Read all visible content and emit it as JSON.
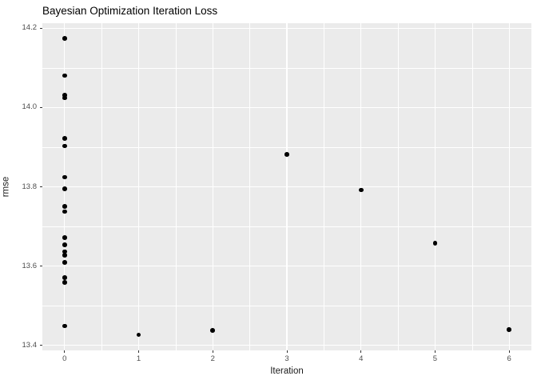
{
  "chart_data": {
    "type": "scatter",
    "title": "Bayesian Optimization Iteration Loss",
    "xlabel": "Iteration",
    "ylabel": "rmse",
    "x_tick_labels": [
      "0",
      "1",
      "2",
      "3",
      "4",
      "5",
      "6"
    ],
    "x_tick_values": [
      0,
      1,
      2,
      3,
      4,
      5,
      6
    ],
    "y_tick_labels": [
      "13.4",
      "13.6",
      "13.8",
      "14.0",
      "14.2"
    ],
    "y_tick_values": [
      13.4,
      13.6,
      13.8,
      14.0,
      14.2
    ],
    "x_minor_values": [
      0.5,
      1.5,
      2.5,
      3.5,
      4.5,
      5.5
    ],
    "y_minor_values": [
      13.5,
      13.7,
      13.9,
      14.1
    ],
    "xlim": [
      -0.3,
      6.3
    ],
    "ylim": [
      13.387,
      14.213
    ],
    "grid": "major and minor white gridlines on gray panel",
    "legend_position": "none",
    "points": [
      {
        "x": 0,
        "y": 14.175
      },
      {
        "x": 0,
        "y": 14.081
      },
      {
        "x": 0,
        "y": 14.031
      },
      {
        "x": 0,
        "y": 14.024
      },
      {
        "x": 0,
        "y": 13.922
      },
      {
        "x": 0,
        "y": 13.903
      },
      {
        "x": 0,
        "y": 13.824
      },
      {
        "x": 0,
        "y": 13.795
      },
      {
        "x": 0,
        "y": 13.75
      },
      {
        "x": 0,
        "y": 13.737
      },
      {
        "x": 0,
        "y": 13.672
      },
      {
        "x": 0,
        "y": 13.654
      },
      {
        "x": 0,
        "y": 13.636
      },
      {
        "x": 0,
        "y": 13.627
      },
      {
        "x": 0,
        "y": 13.609
      },
      {
        "x": 0,
        "y": 13.571
      },
      {
        "x": 0,
        "y": 13.559
      },
      {
        "x": 0,
        "y": 13.449
      },
      {
        "x": 1,
        "y": 13.426
      },
      {
        "x": 2,
        "y": 13.438
      },
      {
        "x": 3,
        "y": 13.882
      },
      {
        "x": 4,
        "y": 13.792
      },
      {
        "x": 5,
        "y": 13.658
      },
      {
        "x": 6,
        "y": 13.44
      }
    ],
    "colors": {
      "background": "#FFFFFF",
      "panel_bg": "#EBEBEB",
      "grid_major": "#FFFFFF",
      "grid_minor": "#FFFFFF",
      "point": "#000000",
      "tick_label": "#4D4D4D",
      "tick_mark": "#333333",
      "title": "#000000",
      "axis_title": "#1A1A1A"
    }
  }
}
